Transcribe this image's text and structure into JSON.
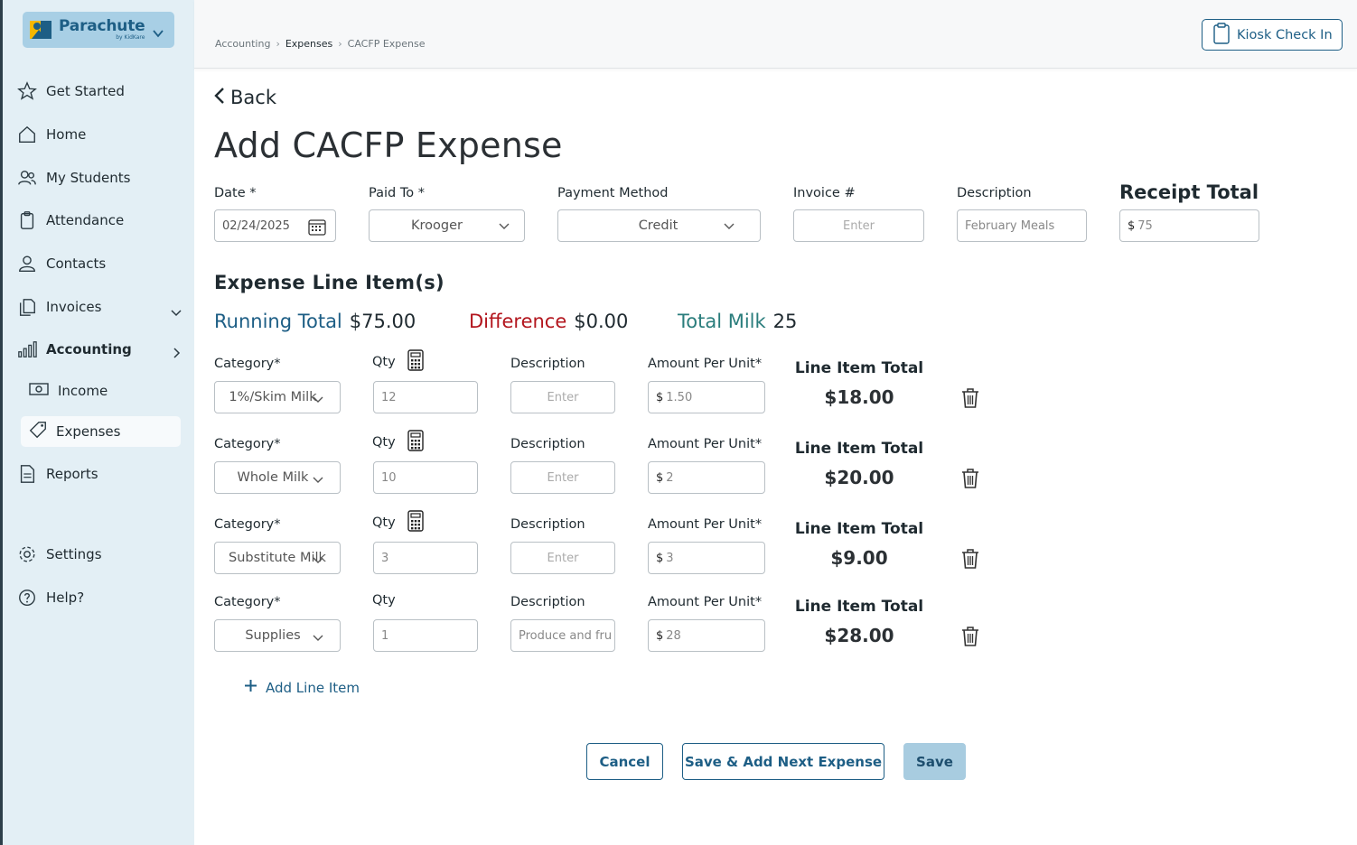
{
  "brand": {
    "name": "Parachute",
    "sub": "by KidKare"
  },
  "sidebar": {
    "items": [
      {
        "label": "Get Started",
        "icon": "star-icon"
      },
      {
        "label": "Home",
        "icon": "home-icon"
      },
      {
        "label": "My Students",
        "icon": "users-icon"
      },
      {
        "label": "Attendance",
        "icon": "clipboard-icon"
      },
      {
        "label": "Contacts",
        "icon": "user-icon"
      },
      {
        "label": "Invoices",
        "icon": "documents-icon"
      },
      {
        "label": "Accounting",
        "icon": "bar-chart-icon"
      },
      {
        "label": "Income",
        "icon": "money-icon"
      },
      {
        "label": "Expenses",
        "icon": "tag-icon"
      },
      {
        "label": "Reports",
        "icon": "report-icon"
      },
      {
        "label": "Settings",
        "icon": "gear-icon"
      },
      {
        "label": "Help?",
        "icon": "help-icon"
      }
    ]
  },
  "header": {
    "breadcrumb": [
      "Accounting",
      "Expenses",
      "CACFP Expense"
    ],
    "kiosk_label": "Kiosk Check In"
  },
  "main": {
    "back_label": "Back",
    "title": "Add CACFP Expense",
    "form": {
      "date_label": "Date *",
      "date_value": "02/24/2025",
      "paid_to_label": "Paid To *",
      "paid_to_value": "Krooger",
      "payment_method_label": "Payment Method",
      "payment_method_value": "Credit",
      "invoice_label": "Invoice #",
      "invoice_placeholder": "Enter",
      "description_label": "Description",
      "description_value": "February Meals",
      "receipt_total_label": "Receipt Total",
      "receipt_total_prefix": "$",
      "receipt_total_value": "75"
    },
    "line_items_title": "Expense Line Item(s)",
    "totals": {
      "running_label": "Running Total",
      "running_value": "$75.00",
      "difference_label": "Difference",
      "difference_value": "$0.00",
      "milk_label": "Total Milk",
      "milk_value": "25"
    },
    "line_headers": {
      "category": "Category*",
      "qty": "Qty",
      "description": "Description",
      "amount": "Amount Per Unit*",
      "line_total": "Line Item Total",
      "desc_placeholder": "Enter",
      "currency": "$"
    },
    "line_items": [
      {
        "category": "1%/Skim Milk",
        "qty": "12",
        "description": "",
        "amount": "1.50",
        "total": "$18.00"
      },
      {
        "category": "Whole Milk",
        "qty": "10",
        "description": "",
        "amount": "2",
        "total": "$20.00"
      },
      {
        "category": "Substitute Milk",
        "qty": "3",
        "description": "",
        "amount": "3",
        "total": "$9.00"
      },
      {
        "category": "Supplies",
        "qty": "1",
        "description": "Produce and fru",
        "amount": "28",
        "total": "$28.00"
      }
    ],
    "add_line_label": "Add Line Item",
    "buttons": {
      "cancel": "Cancel",
      "save_next": "Save & Add Next Expense",
      "save": "Save"
    }
  },
  "colors": {
    "accent": "#1d5e85",
    "sidebar_bg": "#e3eff5",
    "difference": "#b3161e",
    "milk": "#2a7d7c"
  }
}
